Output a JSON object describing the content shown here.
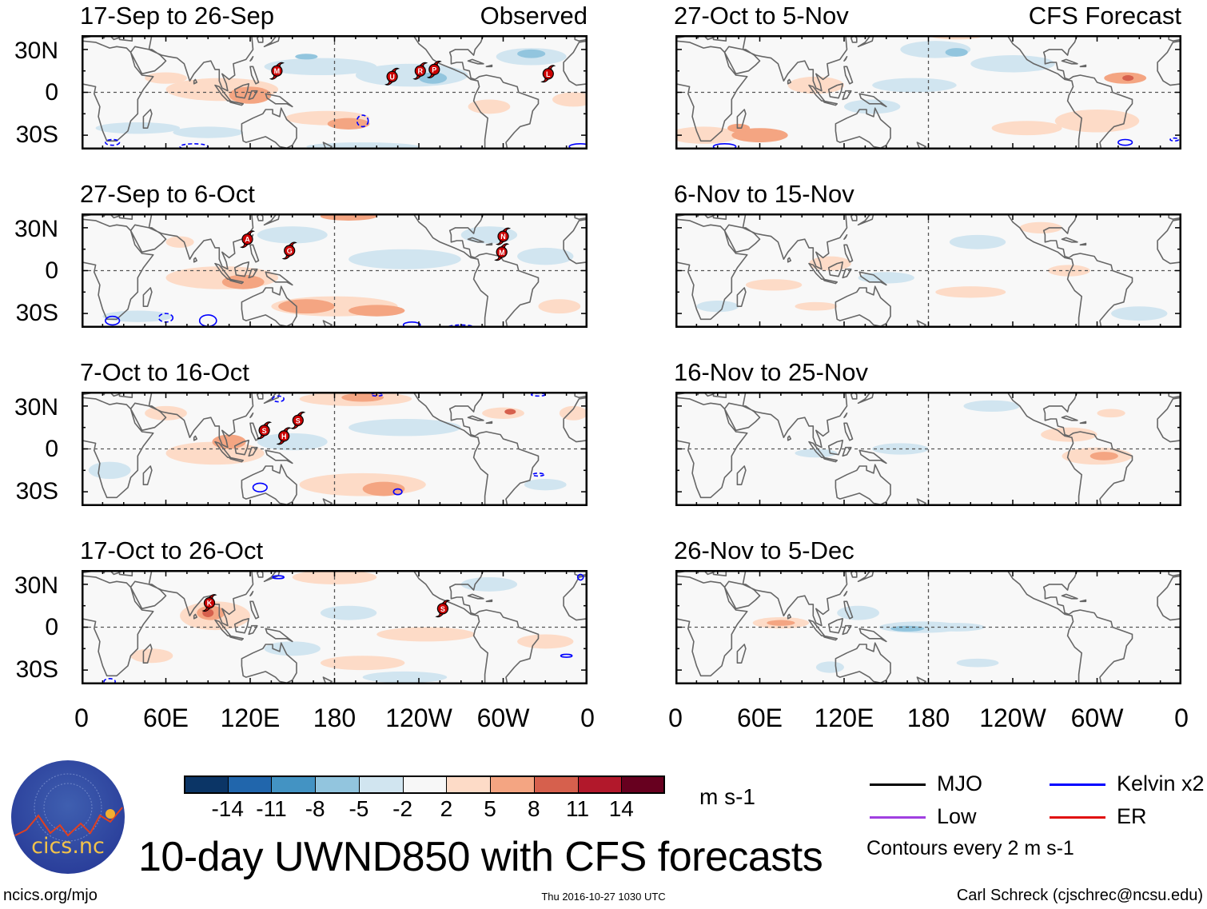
{
  "figure_title": "10-day UWND850 with CFS forecasts",
  "columns": {
    "left_label": "Observed",
    "right_label": "CFS Forecast"
  },
  "y_labels": [
    "30N",
    "0",
    "30S"
  ],
  "x_labels": [
    "0",
    "60E",
    "120E",
    "180",
    "120W",
    "60W",
    "0"
  ],
  "x_label_lons": [
    0,
    60,
    120,
    180,
    240,
    300,
    360
  ],
  "lat_range": [
    -40,
    40
  ],
  "colorbar": {
    "colors": [
      "#0b3566",
      "#2166ac",
      "#4393c3",
      "#92c5de",
      "#d1e5f0",
      "#f7f7f7",
      "#fddbc7",
      "#f4a582",
      "#d6604d",
      "#b2182b",
      "#67001f"
    ],
    "labels": [
      "-14",
      "-11",
      "-8",
      "-5",
      "-2",
      "2",
      "5",
      "8",
      "11",
      "14"
    ],
    "units": "m s-1"
  },
  "legend": {
    "items": [
      {
        "label": "MJO",
        "color": "#000000"
      },
      {
        "label": "Kelvin x2",
        "color": "#0000ff"
      },
      {
        "label": "Low",
        "color": "#a040e0"
      },
      {
        "label": "ER",
        "color": "#e01010"
      }
    ],
    "note": "Contours every 2 m s-1"
  },
  "logo": {
    "text": "cics.nc",
    "ring_text": "Cooperative Institute for Climate and Satellites"
  },
  "footer": {
    "left": "ncics.org/mjo",
    "center": "Thu 2016-10-27 1030 UTC",
    "right": "Carl Schreck (cjschrec@ncsu.edu)"
  },
  "panels": [
    {
      "title": "17-Sep to 26-Sep",
      "type": "observed",
      "anomalies": [
        [
          100,
          2,
          40,
          8,
          6
        ],
        [
          120,
          -2,
          15,
          6,
          7
        ],
        [
          175,
          -18,
          30,
          5,
          6
        ],
        [
          190,
          -22,
          15,
          4,
          7
        ],
        [
          60,
          10,
          15,
          4,
          6
        ],
        [
          170,
          18,
          40,
          6,
          4
        ],
        [
          235,
          12,
          40,
          8,
          4
        ],
        [
          250,
          10,
          10,
          4,
          3
        ],
        [
          320,
          25,
          25,
          6,
          4
        ],
        [
          320,
          27,
          10,
          3,
          3
        ],
        [
          40,
          -25,
          30,
          4,
          4
        ],
        [
          90,
          -28,
          25,
          4,
          4
        ],
        [
          200,
          -38,
          40,
          3,
          4
        ],
        [
          290,
          -10,
          15,
          5,
          6
        ],
        [
          350,
          -5,
          15,
          5,
          6
        ],
        [
          160,
          25,
          8,
          2,
          3
        ]
      ],
      "contours": [
        [
          200,
          -20,
          4,
          4,
          "dashed"
        ],
        [
          80,
          -38,
          10,
          2,
          "dashed"
        ],
        [
          22,
          -35,
          5,
          2,
          "dashed"
        ],
        [
          355,
          -38,
          8,
          2,
          "solid"
        ],
        [
          180,
          40,
          5,
          1,
          "dashed"
        ],
        [
          270,
          -40,
          6,
          1,
          "solid"
        ]
      ],
      "storms": [
        [
          139,
          15,
          "M"
        ],
        [
          221,
          11,
          "U"
        ],
        [
          241,
          15,
          "R"
        ],
        [
          251,
          16,
          "P"
        ],
        [
          332,
          13,
          "L"
        ]
      ]
    },
    {
      "title": "27-Oct to 5-Nov",
      "type": "forecast",
      "anomalies": [
        [
          20,
          -30,
          25,
          6,
          6
        ],
        [
          60,
          -30,
          20,
          5,
          7
        ],
        [
          45,
          -25,
          8,
          3,
          7
        ],
        [
          100,
          5,
          20,
          6,
          6
        ],
        [
          185,
          30,
          25,
          6,
          4
        ],
        [
          200,
          28,
          8,
          3,
          3
        ],
        [
          240,
          20,
          30,
          6,
          4
        ],
        [
          320,
          10,
          15,
          4,
          7
        ],
        [
          322,
          10,
          4,
          2,
          8
        ],
        [
          300,
          -20,
          30,
          8,
          6
        ],
        [
          250,
          -25,
          25,
          5,
          6
        ],
        [
          140,
          -10,
          20,
          5,
          4
        ],
        [
          170,
          5,
          30,
          5,
          4
        ],
        [
          200,
          40,
          20,
          3,
          6
        ]
      ],
      "contours": [
        [
          35,
          -38,
          8,
          2,
          "solid"
        ],
        [
          320,
          -35,
          5,
          2,
          "solid"
        ],
        [
          355,
          -33,
          3,
          1,
          "dashed"
        ]
      ],
      "storms": []
    },
    {
      "title": "27-Sep to 6-Oct",
      "type": "observed",
      "anomalies": [
        [
          100,
          -5,
          40,
          8,
          6
        ],
        [
          115,
          -8,
          15,
          5,
          7
        ],
        [
          180,
          -25,
          45,
          7,
          6
        ],
        [
          160,
          -25,
          20,
          5,
          7
        ],
        [
          210,
          -28,
          20,
          4,
          7
        ],
        [
          150,
          25,
          25,
          6,
          4
        ],
        [
          230,
          8,
          40,
          7,
          4
        ],
        [
          290,
          25,
          20,
          6,
          4
        ],
        [
          330,
          10,
          20,
          6,
          4
        ],
        [
          40,
          -32,
          25,
          4,
          4
        ],
        [
          340,
          -25,
          15,
          5,
          6
        ],
        [
          190,
          38,
          20,
          3,
          7
        ],
        [
          70,
          20,
          10,
          4,
          6
        ]
      ],
      "contours": [
        [
          22,
          -35,
          5,
          3,
          "solid"
        ],
        [
          60,
          -33,
          5,
          3,
          "dashed"
        ],
        [
          90,
          -35,
          6,
          4,
          "solid"
        ],
        [
          235,
          -38,
          6,
          2,
          "solid"
        ],
        [
          270,
          -40,
          10,
          2,
          "dashed"
        ]
      ],
      "storms": [
        [
          118,
          22,
          "A"
        ],
        [
          148,
          14,
          "G"
        ],
        [
          300,
          24,
          "N"
        ],
        [
          299,
          13,
          "M"
        ]
      ]
    },
    {
      "title": "6-Nov to 15-Nov",
      "type": "forecast",
      "anomalies": [
        [
          110,
          5,
          15,
          5,
          6
        ],
        [
          70,
          -10,
          20,
          4,
          6
        ],
        [
          150,
          -5,
          20,
          4,
          4
        ],
        [
          210,
          -15,
          25,
          4,
          6
        ],
        [
          215,
          20,
          20,
          5,
          4
        ],
        [
          260,
          30,
          15,
          4,
          6
        ],
        [
          330,
          -30,
          20,
          5,
          4
        ],
        [
          30,
          -25,
          15,
          4,
          4
        ],
        [
          100,
          -25,
          15,
          3,
          6
        ],
        [
          280,
          0,
          15,
          4,
          6
        ]
      ],
      "contours": [],
      "storms": []
    },
    {
      "title": "7-Oct to 16-Oct",
      "type": "observed",
      "anomalies": [
        [
          95,
          -3,
          35,
          8,
          6
        ],
        [
          105,
          5,
          12,
          5,
          7
        ],
        [
          200,
          -25,
          45,
          8,
          6
        ],
        [
          215,
          -28,
          15,
          5,
          7
        ],
        [
          195,
          35,
          40,
          5,
          6
        ],
        [
          200,
          36,
          15,
          3,
          7
        ],
        [
          300,
          25,
          15,
          4,
          6
        ],
        [
          305,
          26,
          4,
          2,
          8
        ],
        [
          150,
          5,
          25,
          6,
          4
        ],
        [
          230,
          15,
          40,
          6,
          4
        ],
        [
          20,
          -15,
          15,
          6,
          4
        ],
        [
          330,
          -25,
          15,
          4,
          4
        ],
        [
          60,
          25,
          15,
          5,
          6
        ],
        [
          350,
          25,
          10,
          5,
          6
        ]
      ],
      "contours": [
        [
          127,
          -27,
          5,
          3,
          "solid"
        ],
        [
          225,
          -30,
          3,
          2,
          "solid"
        ],
        [
          140,
          35,
          4,
          2,
          "dashed"
        ],
        [
          325,
          -18,
          4,
          1,
          "dashed"
        ],
        [
          325,
          38,
          5,
          1,
          "dashed"
        ],
        [
          210,
          38,
          4,
          1,
          "dashed"
        ]
      ],
      "storms": [
        [
          130,
          13,
          "S"
        ],
        [
          144,
          9,
          "H"
        ],
        [
          154,
          20,
          "S"
        ]
      ]
    },
    {
      "title": "16-Nov to 25-Nov",
      "type": "forecast",
      "anomalies": [
        [
          100,
          -3,
          15,
          3,
          4
        ],
        [
          280,
          10,
          20,
          5,
          6
        ],
        [
          300,
          -5,
          25,
          6,
          6
        ],
        [
          305,
          -5,
          10,
          3,
          7
        ],
        [
          225,
          30,
          20,
          4,
          4
        ],
        [
          160,
          0,
          20,
          4,
          4
        ],
        [
          310,
          25,
          10,
          3,
          6
        ]
      ],
      "contours": [],
      "storms": []
    },
    {
      "title": "17-Oct to 26-Oct",
      "type": "observed",
      "anomalies": [
        [
          95,
          8,
          25,
          10,
          6
        ],
        [
          92,
          10,
          10,
          5,
          7
        ],
        [
          90,
          10,
          4,
          3,
          8
        ],
        [
          180,
          35,
          30,
          5,
          6
        ],
        [
          245,
          -5,
          35,
          5,
          6
        ],
        [
          200,
          -25,
          30,
          5,
          6
        ],
        [
          150,
          -15,
          20,
          5,
          4
        ],
        [
          190,
          10,
          20,
          5,
          4
        ],
        [
          290,
          30,
          20,
          5,
          4
        ],
        [
          230,
          -35,
          30,
          4,
          4
        ],
        [
          330,
          -10,
          20,
          5,
          6
        ],
        [
          50,
          -20,
          15,
          5,
          6
        ]
      ],
      "contours": [
        [
          140,
          35,
          4,
          1,
          "solid"
        ],
        [
          345,
          -20,
          4,
          1,
          "solid"
        ],
        [
          20,
          -38,
          4,
          2,
          "dashed"
        ],
        [
          355,
          35,
          2,
          2,
          "solid"
        ]
      ],
      "storms": [
        [
          91,
          17,
          "K"
        ],
        [
          257,
          13,
          "S"
        ]
      ]
    },
    {
      "title": "26-Nov to 5-Dec",
      "type": "forecast",
      "anomalies": [
        [
          75,
          3,
          20,
          4,
          6
        ],
        [
          75,
          3,
          10,
          2,
          7
        ],
        [
          130,
          10,
          15,
          5,
          4
        ],
        [
          175,
          0,
          30,
          4,
          4
        ],
        [
          165,
          -1,
          12,
          2,
          3
        ],
        [
          200,
          0,
          20,
          3,
          4
        ],
        [
          110,
          -28,
          10,
          4,
          4
        ],
        [
          215,
          -25,
          15,
          3,
          4
        ]
      ],
      "contours": [],
      "storms": []
    }
  ]
}
